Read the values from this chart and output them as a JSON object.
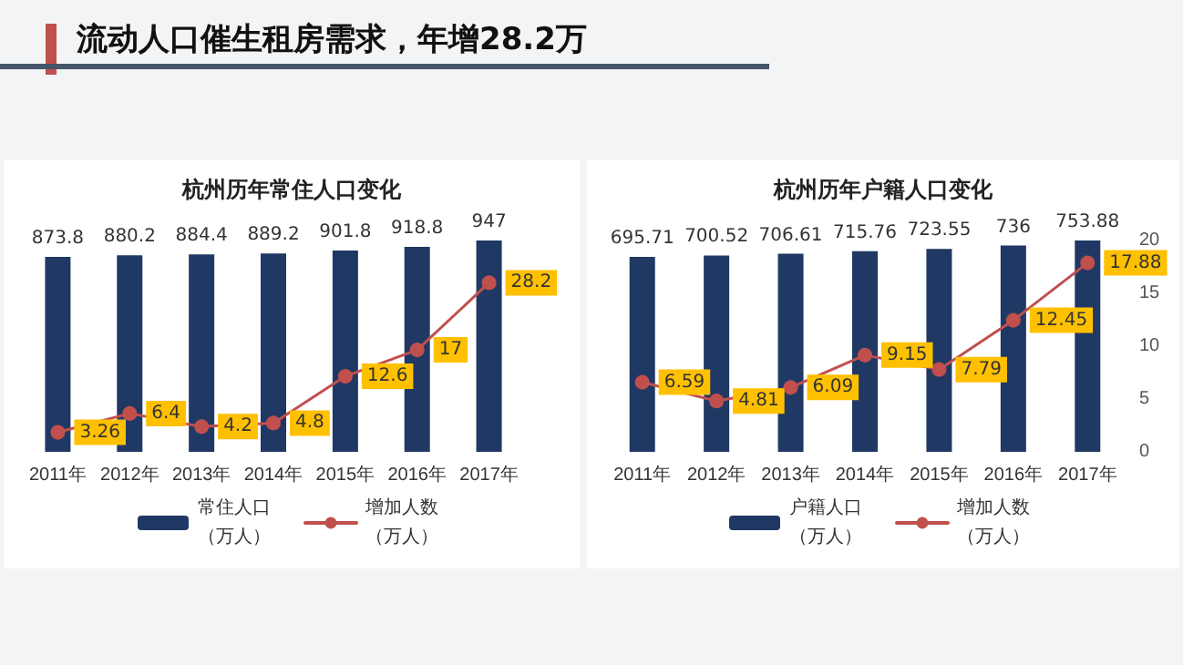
{
  "chart_data": [
    {
      "type": "bar",
      "title": "杭州历年常住人口变化",
      "annotations": [
        "流动人口催生租房需求，年增28.2万"
      ],
      "categories": [
        "2011年",
        "2012年",
        "2013年",
        "2014年",
        "2015年",
        "2016年",
        "2017年"
      ],
      "series": [
        {
          "name": "常住人口（万人）",
          "color": "#203864",
          "values": [
            873.8,
            880.2,
            884.4,
            889.2,
            901.8,
            918.8,
            947
          ]
        },
        {
          "name": "增加人数（万人）",
          "type": "line",
          "axis": "y2",
          "color": "#c0504d",
          "values": [
            3.26,
            6.4,
            4.2,
            4.8,
            12.6,
            17,
            28.2
          ]
        }
      ],
      "data_labels": true,
      "legend": "bottom",
      "grid": false,
      "marker": "circle",
      "line_style": "solid",
      "tick_labels": "x"
    },
    {
      "type": "bar",
      "title": "杭州历年户籍人口变化",
      "categories": [
        "2011年",
        "2012年",
        "2013年",
        "2014年",
        "2015年",
        "2016年",
        "2017年"
      ],
      "series": [
        {
          "name": "户籍人口（万人）",
          "color": "#203864",
          "values": [
            695.71,
            700.52,
            706.61,
            715.76,
            723.55,
            736,
            753.88
          ]
        },
        {
          "name": "增加人数（万人）",
          "type": "line",
          "axis": "y2",
          "color": "#c0504d",
          "values": [
            6.59,
            4.81,
            6.09,
            9.15,
            7.79,
            12.45,
            17.88
          ]
        }
      ],
      "y2lim": [
        0,
        20
      ],
      "y2ticks": [
        0,
        5,
        10,
        15,
        20
      ],
      "data_labels": true,
      "legend": "bottom",
      "grid": false,
      "marker": "circle",
      "line_style": "solid"
    }
  ]
}
